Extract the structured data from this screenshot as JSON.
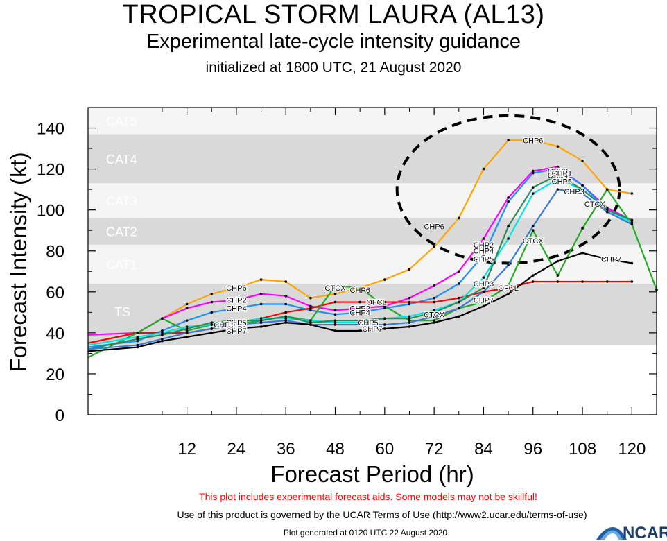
{
  "header": {
    "title": "TROPICAL STORM LAURA (AL13)",
    "subtitle": "Experimental late-cycle intensity guidance",
    "init": "initialized at 1800 UTC, 21 August 2020"
  },
  "footer": {
    "warning": "This plot includes experimental forecast aids. Some models may not be skillful!",
    "terms": "Use of this product is governed by the UCAR Terms of Use (http://www2.ucar.edu/terms-of-use)",
    "generated": "Plot generated at 0120 UTC   22 August 2020",
    "logo_text": "NCAR"
  },
  "chart_data": {
    "type": "line",
    "xlabel": "Forecast Period (hr)",
    "ylabel": "Forecast Intensity (kt)",
    "xlim": [
      -12,
      126
    ],
    "ylim": [
      0,
      150
    ],
    "xticks": [
      12,
      24,
      36,
      48,
      60,
      72,
      84,
      96,
      108,
      120
    ],
    "yticks": [
      0,
      20,
      40,
      60,
      80,
      100,
      120,
      140
    ],
    "grid": false,
    "bands": [
      {
        "label": "TS",
        "from": 34,
        "to": 64,
        "color": "#d9d9d9"
      },
      {
        "label": "CAT1",
        "from": 64,
        "to": 83,
        "color": "#f5f5f5"
      },
      {
        "label": "CAT2",
        "from": 83,
        "to": 96,
        "color": "#d9d9d9"
      },
      {
        "label": "CAT3",
        "from": 96,
        "to": 113,
        "color": "#f5f5f5"
      },
      {
        "label": "CAT4",
        "from": 113,
        "to": 137,
        "color": "#d9d9d9"
      },
      {
        "label": "CAT5",
        "from": 137,
        "to": 150,
        "color": "#f5f5f5"
      }
    ],
    "annotations": [
      {
        "type": "ellipse",
        "cx": 90,
        "cy": 110,
        "rx": 27,
        "ry": 36,
        "style": "dashed"
      }
    ],
    "series": [
      {
        "name": "CHP6",
        "color": "#ffa500",
        "x": [
          -12,
          0,
          6,
          12,
          18,
          24,
          30,
          36,
          42,
          48,
          54,
          60,
          66,
          72,
          78,
          84,
          90,
          96,
          102,
          108,
          114,
          120
        ],
        "y": [
          35,
          40,
          47,
          54,
          59,
          62,
          66,
          65,
          57,
          59,
          62,
          66,
          71,
          82,
          96,
          120,
          134,
          134,
          131,
          124,
          110,
          108
        ],
        "labels": [
          {
            "x": 24,
            "y": 62
          },
          {
            "x": 54,
            "y": 61
          },
          {
            "x": 72,
            "y": 92
          },
          {
            "x": 96,
            "y": 134
          }
        ]
      },
      {
        "name": "CHP2",
        "color": "#ff00ff",
        "x": [
          -12,
          0,
          6,
          12,
          18,
          24,
          30,
          36,
          42,
          48,
          54,
          60,
          66,
          72,
          78,
          84,
          90,
          96,
          102,
          108,
          114,
          120
        ],
        "y": [
          39,
          40,
          47,
          52,
          55,
          56,
          59,
          58,
          53,
          51,
          52,
          53,
          57,
          63,
          70,
          86,
          106,
          119,
          121,
          112,
          101,
          95
        ],
        "labels": [
          {
            "x": 24,
            "y": 56
          },
          {
            "x": 54,
            "y": 52
          },
          {
            "x": 84,
            "y": 83
          },
          {
            "x": 102,
            "y": 119
          }
        ]
      },
      {
        "name": "CHP4",
        "color": "#1e90ff",
        "x": [
          -12,
          0,
          6,
          12,
          18,
          24,
          30,
          36,
          42,
          48,
          54,
          60,
          66,
          72,
          78,
          84,
          90,
          96,
          102,
          108,
          114,
          120
        ],
        "y": [
          33,
          36,
          41,
          46,
          50,
          52,
          54,
          54,
          51,
          49,
          50,
          52,
          54,
          57,
          64,
          78,
          104,
          118,
          120,
          112,
          100,
          95
        ],
        "labels": [
          {
            "x": 24,
            "y": 52
          },
          {
            "x": 54,
            "y": 50
          },
          {
            "x": 84,
            "y": 80
          },
          {
            "x": 102,
            "y": 117
          }
        ]
      },
      {
        "name": "OFCL",
        "color": "#ff0000",
        "x": [
          -12,
          0,
          6,
          12,
          18,
          24,
          30,
          36,
          42,
          48,
          54,
          60,
          66,
          72,
          78,
          84,
          90,
          96,
          102,
          108,
          114,
          120
        ],
        "y": [
          35,
          40,
          40,
          40,
          42,
          45,
          47,
          50,
          52,
          55,
          55,
          55,
          55,
          55,
          57,
          60,
          62,
          65,
          65,
          65,
          65,
          65
        ],
        "labels": [
          {
            "x": 58,
            "y": 55
          },
          {
            "x": 90,
            "y": 62
          }
        ]
      },
      {
        "name": "CTCX",
        "color": "#22aa22",
        "x": [
          -12,
          0,
          6,
          12,
          18,
          24,
          30,
          36,
          42,
          48,
          54,
          60,
          66,
          72,
          78,
          84,
          90,
          96,
          102,
          108,
          114,
          120,
          126
        ],
        "y": [
          28,
          40,
          47,
          41,
          44,
          44,
          46,
          48,
          46,
          63,
          62,
          53,
          46,
          46,
          52,
          55,
          63,
          90,
          68,
          91,
          110,
          93,
          61
        ],
        "labels": [
          {
            "x": 48,
            "y": 62
          },
          {
            "x": 72,
            "y": 49
          },
          {
            "x": 96,
            "y": 85
          },
          {
            "x": 111,
            "y": 103
          }
        ]
      },
      {
        "name": "CHP5",
        "color": "#00e5e5",
        "x": [
          -12,
          0,
          6,
          12,
          18,
          24,
          30,
          36,
          42,
          48,
          54,
          60,
          66,
          72,
          78,
          84,
          90,
          96,
          102,
          108,
          114,
          120
        ],
        "y": [
          34,
          38,
          40,
          43,
          44,
          45,
          47,
          47,
          46,
          45,
          45,
          47,
          48,
          51,
          55,
          67,
          86,
          108,
          115,
          110,
          100,
          94
        ],
        "labels": [
          {
            "x": 24,
            "y": 45
          },
          {
            "x": 56,
            "y": 45
          },
          {
            "x": 84,
            "y": 76
          },
          {
            "x": 103,
            "y": 114
          }
        ]
      },
      {
        "name": "CHP1",
        "color": "#2e8b57",
        "x": [
          -12,
          0,
          6,
          12,
          18,
          24,
          30,
          36,
          42,
          48,
          54,
          60,
          66,
          72,
          78,
          84,
          90,
          96,
          102,
          108,
          114,
          120
        ],
        "y": [
          32,
          37,
          39,
          42,
          45,
          46,
          46,
          48,
          45,
          46,
          46,
          47,
          47,
          50,
          55,
          62,
          92,
          111,
          117,
          110,
          100,
          95
        ],
        "labels": [
          {
            "x": 21,
            "y": 44
          },
          {
            "x": 103,
            "y": 118
          }
        ]
      },
      {
        "name": "CHP3",
        "color": "#3a7bd5",
        "x": [
          -12,
          0,
          6,
          12,
          18,
          24,
          30,
          36,
          42,
          48,
          54,
          60,
          66,
          72,
          78,
          84,
          90,
          96,
          102,
          108,
          114,
          120
        ],
        "y": [
          32,
          34,
          37,
          40,
          42,
          44,
          45,
          46,
          44,
          44,
          44,
          44,
          45,
          48,
          52,
          60,
          73,
          92,
          110,
          108,
          99,
          93
        ],
        "labels": [
          {
            "x": 24,
            "y": 42
          },
          {
            "x": 84,
            "y": 64
          },
          {
            "x": 106,
            "y": 109
          }
        ]
      },
      {
        "name": "CHP7",
        "color": "#000000",
        "x": [
          -12,
          0,
          6,
          12,
          18,
          24,
          30,
          36,
          42,
          48,
          54,
          60,
          66,
          72,
          78,
          84,
          90,
          96,
          102,
          108,
          114,
          120
        ],
        "y": [
          31,
          33,
          36,
          38,
          40,
          42,
          43,
          45,
          44,
          41,
          41,
          42,
          43,
          45,
          48,
          53,
          59,
          68,
          75,
          79,
          76,
          74
        ],
        "labels": [
          {
            "x": 24,
            "y": 41
          },
          {
            "x": 57,
            "y": 42
          },
          {
            "x": 84,
            "y": 56
          },
          {
            "x": 115,
            "y": 76
          }
        ]
      }
    ]
  }
}
